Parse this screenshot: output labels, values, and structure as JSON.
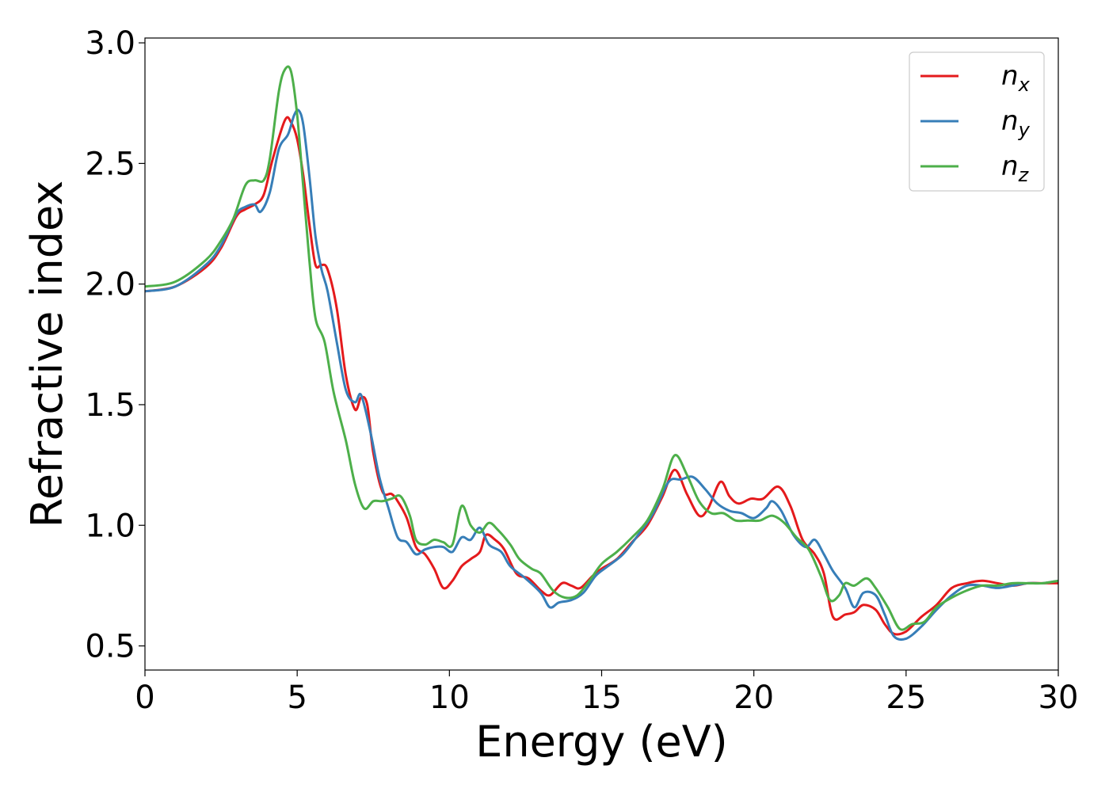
{
  "chart_data": {
    "type": "line",
    "xlabel": "Energy (eV)",
    "ylabel": "Refractive index",
    "xlim": [
      0,
      30
    ],
    "ylim": [
      0.4,
      3.02
    ],
    "xticks": [
      0,
      5,
      10,
      15,
      20,
      25,
      30
    ],
    "xtick_labels": [
      "0",
      "5",
      "10",
      "15",
      "20",
      "25",
      "30"
    ],
    "yticks": [
      0.5,
      1.0,
      1.5,
      2.0,
      2.5,
      3.0
    ],
    "ytick_labels": [
      "0.5",
      "1.0",
      "1.5",
      "2.0",
      "2.5",
      "3.0"
    ],
    "grid": false,
    "legend_position": "top-right",
    "series": [
      {
        "name": "n_x",
        "label_base": "n",
        "label_sub": "x",
        "color": "#e41a1c",
        "points": [
          [
            0,
            1.97
          ],
          [
            1,
            1.99
          ],
          [
            2,
            2.07
          ],
          [
            2.5,
            2.15
          ],
          [
            3,
            2.28
          ],
          [
            3.3,
            2.31
          ],
          [
            3.6,
            2.33
          ],
          [
            3.9,
            2.37
          ],
          [
            4.2,
            2.52
          ],
          [
            4.6,
            2.68
          ],
          [
            4.8,
            2.67
          ],
          [
            5.0,
            2.6
          ],
          [
            5.2,
            2.45
          ],
          [
            5.4,
            2.25
          ],
          [
            5.6,
            2.08
          ],
          [
            5.8,
            2.08
          ],
          [
            6.0,
            2.06
          ],
          [
            6.3,
            1.9
          ],
          [
            6.6,
            1.62
          ],
          [
            6.9,
            1.48
          ],
          [
            7.1,
            1.53
          ],
          [
            7.3,
            1.5
          ],
          [
            7.5,
            1.3
          ],
          [
            7.8,
            1.14
          ],
          [
            8.1,
            1.13
          ],
          [
            8.3,
            1.1
          ],
          [
            8.6,
            1.03
          ],
          [
            8.9,
            0.91
          ],
          [
            9.2,
            0.88
          ],
          [
            9.5,
            0.82
          ],
          [
            9.8,
            0.74
          ],
          [
            10.1,
            0.77
          ],
          [
            10.4,
            0.83
          ],
          [
            10.7,
            0.86
          ],
          [
            11.0,
            0.89
          ],
          [
            11.2,
            0.96
          ],
          [
            11.5,
            0.94
          ],
          [
            11.8,
            0.9
          ],
          [
            12.2,
            0.8
          ],
          [
            12.6,
            0.78
          ],
          [
            13.0,
            0.73
          ],
          [
            13.3,
            0.71
          ],
          [
            13.7,
            0.76
          ],
          [
            14.0,
            0.75
          ],
          [
            14.3,
            0.74
          ],
          [
            14.7,
            0.79
          ],
          [
            15.0,
            0.82
          ],
          [
            15.5,
            0.86
          ],
          [
            16.0,
            0.93
          ],
          [
            16.5,
            1.0
          ],
          [
            17.0,
            1.12
          ],
          [
            17.4,
            1.23
          ],
          [
            17.8,
            1.13
          ],
          [
            18.2,
            1.04
          ],
          [
            18.5,
            1.07
          ],
          [
            18.9,
            1.18
          ],
          [
            19.2,
            1.12
          ],
          [
            19.5,
            1.09
          ],
          [
            19.9,
            1.11
          ],
          [
            20.3,
            1.11
          ],
          [
            20.8,
            1.16
          ],
          [
            21.2,
            1.08
          ],
          [
            21.6,
            0.94
          ],
          [
            22.0,
            0.88
          ],
          [
            22.3,
            0.8
          ],
          [
            22.6,
            0.62
          ],
          [
            23.0,
            0.63
          ],
          [
            23.3,
            0.64
          ],
          [
            23.6,
            0.67
          ],
          [
            24.0,
            0.65
          ],
          [
            24.3,
            0.59
          ],
          [
            24.6,
            0.55
          ],
          [
            25.0,
            0.56
          ],
          [
            25.5,
            0.62
          ],
          [
            26.0,
            0.67
          ],
          [
            26.5,
            0.74
          ],
          [
            27.0,
            0.76
          ],
          [
            27.5,
            0.77
          ],
          [
            28.0,
            0.76
          ],
          [
            28.5,
            0.75
          ],
          [
            29.0,
            0.76
          ],
          [
            29.5,
            0.76
          ],
          [
            30.0,
            0.76
          ]
        ]
      },
      {
        "name": "n_y",
        "label_base": "n",
        "label_sub": "y",
        "color": "#377eb8",
        "points": [
          [
            0,
            1.97
          ],
          [
            1,
            1.99
          ],
          [
            2,
            2.08
          ],
          [
            2.5,
            2.16
          ],
          [
            3,
            2.29
          ],
          [
            3.3,
            2.32
          ],
          [
            3.6,
            2.33
          ],
          [
            3.8,
            2.3
          ],
          [
            4.1,
            2.38
          ],
          [
            4.4,
            2.56
          ],
          [
            4.7,
            2.62
          ],
          [
            4.9,
            2.7
          ],
          [
            5.05,
            2.72
          ],
          [
            5.2,
            2.66
          ],
          [
            5.4,
            2.45
          ],
          [
            5.6,
            2.2
          ],
          [
            5.8,
            2.06
          ],
          [
            6.0,
            1.97
          ],
          [
            6.3,
            1.76
          ],
          [
            6.6,
            1.56
          ],
          [
            6.9,
            1.51
          ],
          [
            7.1,
            1.54
          ],
          [
            7.4,
            1.39
          ],
          [
            7.7,
            1.2
          ],
          [
            8.0,
            1.07
          ],
          [
            8.3,
            0.95
          ],
          [
            8.6,
            0.93
          ],
          [
            8.9,
            0.88
          ],
          [
            9.2,
            0.9
          ],
          [
            9.5,
            0.91
          ],
          [
            9.8,
            0.91
          ],
          [
            10.1,
            0.89
          ],
          [
            10.4,
            0.95
          ],
          [
            10.7,
            0.94
          ],
          [
            11.0,
            0.99
          ],
          [
            11.3,
            0.92
          ],
          [
            11.7,
            0.89
          ],
          [
            12.0,
            0.83
          ],
          [
            12.5,
            0.78
          ],
          [
            13.0,
            0.72
          ],
          [
            13.3,
            0.66
          ],
          [
            13.6,
            0.68
          ],
          [
            14.0,
            0.69
          ],
          [
            14.4,
            0.72
          ],
          [
            14.8,
            0.79
          ],
          [
            15.2,
            0.83
          ],
          [
            15.7,
            0.88
          ],
          [
            16.2,
            0.96
          ],
          [
            16.7,
            1.05
          ],
          [
            17.2,
            1.18
          ],
          [
            17.6,
            1.19
          ],
          [
            18.0,
            1.2
          ],
          [
            18.4,
            1.15
          ],
          [
            18.8,
            1.09
          ],
          [
            19.2,
            1.06
          ],
          [
            19.6,
            1.05
          ],
          [
            20.0,
            1.03
          ],
          [
            20.4,
            1.07
          ],
          [
            20.6,
            1.1
          ],
          [
            20.9,
            1.06
          ],
          [
            21.3,
            0.96
          ],
          [
            21.7,
            0.91
          ],
          [
            22.0,
            0.94
          ],
          [
            22.3,
            0.88
          ],
          [
            22.6,
            0.81
          ],
          [
            23.0,
            0.74
          ],
          [
            23.3,
            0.66
          ],
          [
            23.6,
            0.72
          ],
          [
            24.0,
            0.71
          ],
          [
            24.3,
            0.63
          ],
          [
            24.6,
            0.54
          ],
          [
            25.0,
            0.53
          ],
          [
            25.5,
            0.58
          ],
          [
            26.0,
            0.65
          ],
          [
            26.5,
            0.71
          ],
          [
            27.0,
            0.75
          ],
          [
            27.5,
            0.75
          ],
          [
            28.0,
            0.74
          ],
          [
            28.5,
            0.75
          ],
          [
            29.0,
            0.76
          ],
          [
            29.5,
            0.76
          ],
          [
            30.0,
            0.77
          ]
        ]
      },
      {
        "name": "n_z",
        "label_base": "n",
        "label_sub": "z",
        "color": "#4daf4a",
        "points": [
          [
            0,
            1.99
          ],
          [
            1,
            2.01
          ],
          [
            2,
            2.1
          ],
          [
            2.5,
            2.18
          ],
          [
            2.9,
            2.27
          ],
          [
            3.3,
            2.41
          ],
          [
            3.6,
            2.43
          ],
          [
            3.9,
            2.43
          ],
          [
            4.1,
            2.52
          ],
          [
            4.4,
            2.8
          ],
          [
            4.6,
            2.89
          ],
          [
            4.8,
            2.88
          ],
          [
            5.0,
            2.7
          ],
          [
            5.2,
            2.4
          ],
          [
            5.4,
            2.1
          ],
          [
            5.6,
            1.86
          ],
          [
            5.9,
            1.76
          ],
          [
            6.2,
            1.55
          ],
          [
            6.6,
            1.35
          ],
          [
            6.9,
            1.17
          ],
          [
            7.2,
            1.07
          ],
          [
            7.5,
            1.1
          ],
          [
            7.8,
            1.1
          ],
          [
            8.1,
            1.11
          ],
          [
            8.4,
            1.12
          ],
          [
            8.7,
            1.04
          ],
          [
            8.9,
            0.94
          ],
          [
            9.2,
            0.92
          ],
          [
            9.5,
            0.94
          ],
          [
            9.8,
            0.93
          ],
          [
            10.1,
            0.92
          ],
          [
            10.4,
            1.08
          ],
          [
            10.7,
            1.0
          ],
          [
            11.0,
            0.97
          ],
          [
            11.3,
            1.01
          ],
          [
            11.6,
            0.98
          ],
          [
            12.0,
            0.92
          ],
          [
            12.3,
            0.86
          ],
          [
            12.7,
            0.82
          ],
          [
            13.0,
            0.8
          ],
          [
            13.4,
            0.73
          ],
          [
            13.8,
            0.7
          ],
          [
            14.2,
            0.71
          ],
          [
            14.6,
            0.77
          ],
          [
            15.0,
            0.84
          ],
          [
            15.5,
            0.89
          ],
          [
            16.0,
            0.95
          ],
          [
            16.5,
            1.02
          ],
          [
            17.0,
            1.15
          ],
          [
            17.4,
            1.29
          ],
          [
            17.8,
            1.21
          ],
          [
            18.2,
            1.1
          ],
          [
            18.6,
            1.05
          ],
          [
            19.0,
            1.05
          ],
          [
            19.4,
            1.02
          ],
          [
            19.8,
            1.02
          ],
          [
            20.2,
            1.02
          ],
          [
            20.6,
            1.04
          ],
          [
            21.0,
            1.01
          ],
          [
            21.4,
            0.95
          ],
          [
            21.8,
            0.9
          ],
          [
            22.2,
            0.79
          ],
          [
            22.5,
            0.69
          ],
          [
            22.8,
            0.71
          ],
          [
            23.0,
            0.76
          ],
          [
            23.3,
            0.75
          ],
          [
            23.7,
            0.78
          ],
          [
            24.0,
            0.74
          ],
          [
            24.4,
            0.66
          ],
          [
            24.8,
            0.57
          ],
          [
            25.2,
            0.59
          ],
          [
            25.6,
            0.6
          ],
          [
            26.0,
            0.66
          ],
          [
            26.5,
            0.7
          ],
          [
            27.0,
            0.73
          ],
          [
            27.5,
            0.75
          ],
          [
            28.0,
            0.75
          ],
          [
            28.5,
            0.76
          ],
          [
            29.0,
            0.76
          ],
          [
            29.5,
            0.76
          ],
          [
            30.0,
            0.77
          ]
        ]
      }
    ]
  }
}
